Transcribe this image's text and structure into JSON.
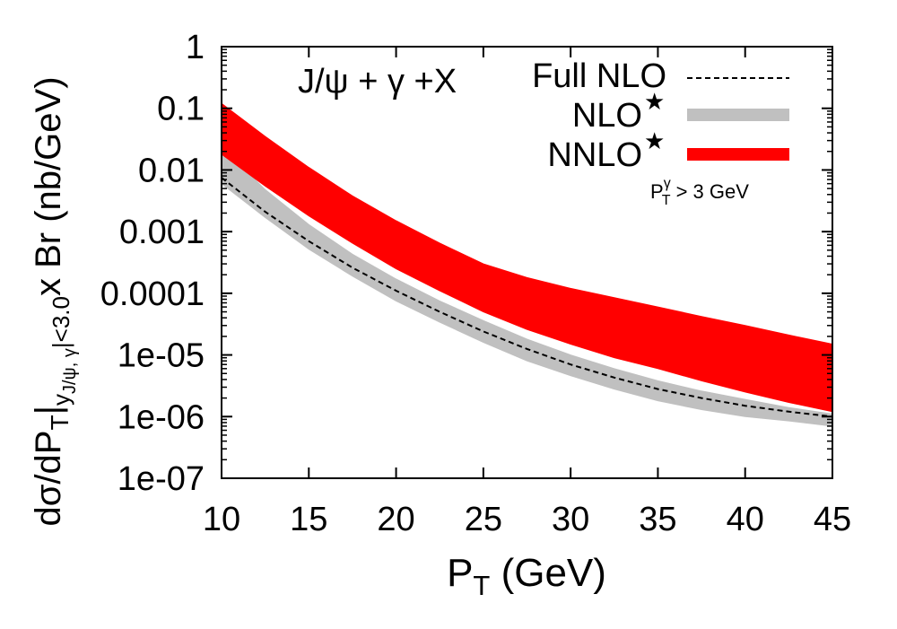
{
  "chart_data": {
    "type": "area",
    "title": "",
    "xlabel": "P",
    "xlabel_sub": "T",
    "xlabel_units": " (GeV)",
    "ylabel": {
      "prefix": "dσ/dP",
      "sub_T": "T",
      "bar": "|",
      "sub_cut_y": "y",
      "sub_cut_rest": "J/ψ, γ",
      "cut_end": "|<3.0",
      "suffix": "x Br (nb/GeV)"
    },
    "yscale": "log",
    "xlim": [
      10,
      45
    ],
    "ylim": [
      1e-07,
      1
    ],
    "xticks": [
      10,
      15,
      20,
      25,
      30,
      35,
      40,
      45
    ],
    "xtick_labels": [
      "10",
      "15",
      "20",
      "25",
      "30",
      "35",
      "40",
      "45"
    ],
    "yticks": [
      1,
      0.1,
      0.01,
      0.001,
      0.0001,
      1e-05,
      1e-06,
      1e-07
    ],
    "ytick_labels": [
      "1",
      "0.1",
      "0.01",
      "0.001",
      "0.0001",
      "1e-05",
      "1e-06",
      "1e-07"
    ],
    "annotations": {
      "process": "J/ψ + γ +X",
      "cut": {
        "text": "P",
        "sup": "γ",
        "sub": "T",
        "rest": " > 3  GeV"
      }
    },
    "x": [
      10,
      12.5,
      15,
      17.5,
      20,
      22.5,
      25,
      27.5,
      30,
      32.5,
      35,
      37.5,
      40,
      42.5,
      45
    ],
    "series": [
      {
        "name": "Full NLO",
        "label": "Full NLO",
        "style": "dashed",
        "color": "#000000",
        "values": [
          0.0075,
          0.0021,
          0.0007,
          0.00026,
          0.00011,
          5e-05,
          2.4e-05,
          1.25e-05,
          7e-06,
          4.3e-06,
          2.8e-06,
          2e-06,
          1.5e-06,
          1.2e-06,
          1e-06
        ]
      },
      {
        "name": "NLO*",
        "label": "NLO",
        "star": "★",
        "style": "band",
        "color": "#c0c0c0",
        "lower": [
          0.006,
          0.0017,
          0.00052,
          0.00019,
          7.5e-05,
          3.4e-05,
          1.6e-05,
          8e-06,
          4.6e-06,
          2.8e-06,
          1.8e-06,
          1.3e-06,
          1e-06,
          8.5e-07,
          7e-07
        ],
        "upper": [
          0.024,
          0.0048,
          0.0013,
          0.00043,
          0.00017,
          7.5e-05,
          3.6e-05,
          1.8e-05,
          1e-05,
          6e-06,
          3.8e-06,
          2.6e-06,
          1.9e-06,
          1.4e-06,
          1.1e-06
        ]
      },
      {
        "name": "NNLO*",
        "label": "NNLO",
        "star": "★",
        "style": "band",
        "color": "#ff0000",
        "lower": [
          0.018,
          0.0055,
          0.0018,
          0.00065,
          0.00025,
          0.00011,
          5e-05,
          2.6e-05,
          1.5e-05,
          9e-06,
          6e-06,
          3.8e-06,
          2.5e-06,
          1.7e-06,
          1.2e-06
        ],
        "upper": [
          0.12,
          0.035,
          0.011,
          0.0038,
          0.0015,
          0.00065,
          0.0003,
          0.00018,
          0.00012,
          8.5e-05,
          6e-05,
          4.2e-05,
          3e-05,
          2.1e-05,
          1.5e-05
        ]
      }
    ],
    "legend_position": "top-right",
    "grid": false
  }
}
